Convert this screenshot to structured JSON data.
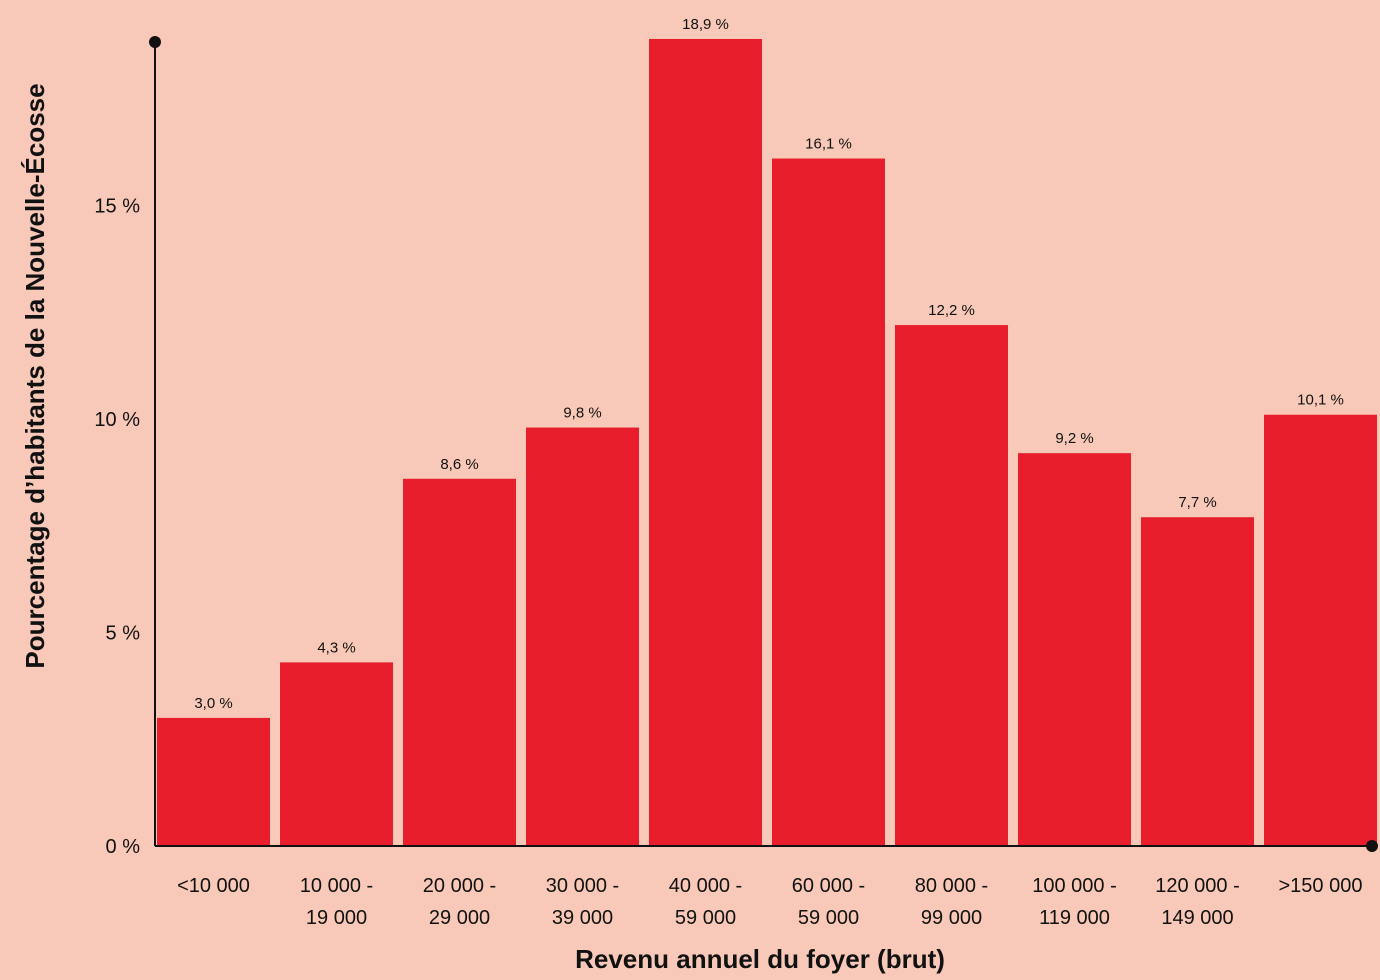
{
  "colors": {
    "background": "#F8C9B8",
    "bar": "#E81E2D",
    "axis": "#111111",
    "text": "#111111"
  },
  "chart_data": {
    "type": "bar",
    "title": "",
    "xlabel": "Revenu annuel du foyer (brut)",
    "ylabel": "Pourcentage d’habitants de la Nouvelle-Écosse",
    "categories": [
      [
        "<10 000"
      ],
      [
        "10 000 -",
        "19 000"
      ],
      [
        "20 000 -",
        "29 000"
      ],
      [
        "30 000 -",
        "39 000"
      ],
      [
        "40 000 -",
        "59 000"
      ],
      [
        "60 000 -",
        "59 000"
      ],
      [
        "80 000 -",
        "99 000"
      ],
      [
        "100 000 -",
        "119 000"
      ],
      [
        "120 000 -",
        "149 000"
      ],
      [
        ">150 000"
      ]
    ],
    "values": [
      3.0,
      4.3,
      8.6,
      9.8,
      18.9,
      16.1,
      12.2,
      9.2,
      7.7,
      10.1
    ],
    "data_labels": [
      "3,0 %",
      "4,3 %",
      "8,6 %",
      "9,8 %",
      "18,9 %",
      "16,1 %",
      "12,2 %",
      "9,2 %",
      "7,7 %",
      "10,1 %"
    ],
    "yticks": [
      0,
      5,
      10,
      15
    ],
    "ytick_labels": [
      "0 %",
      "5 %",
      "10 %",
      "15 %"
    ],
    "ylim": [
      0,
      19
    ],
    "grid": false,
    "legend": "none"
  }
}
